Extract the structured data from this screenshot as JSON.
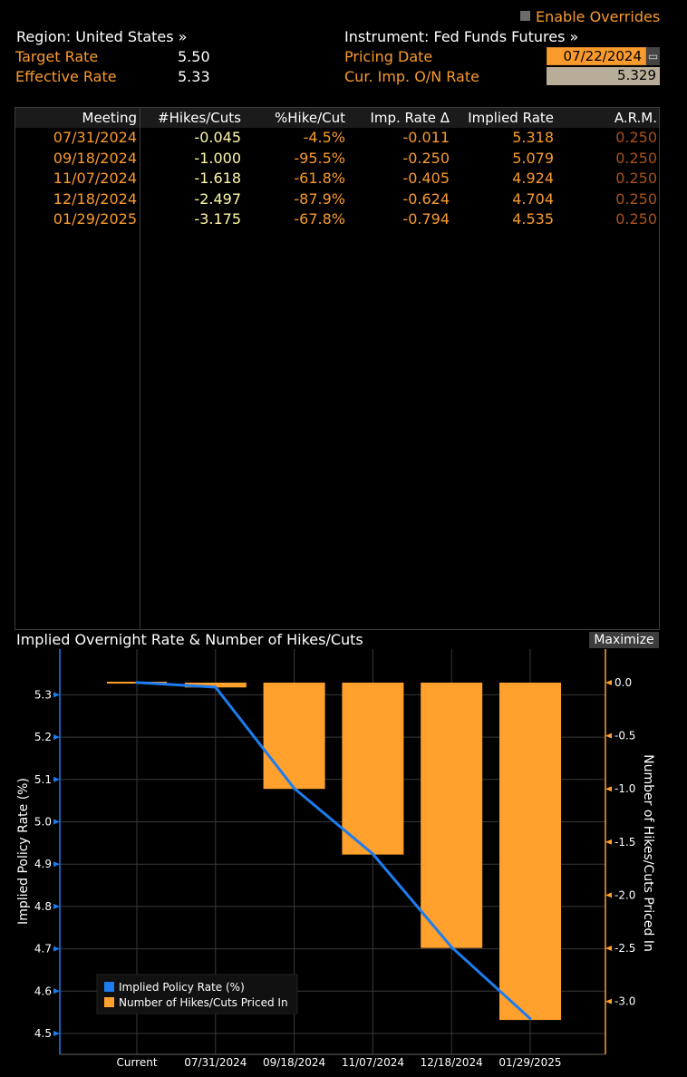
{
  "header": {
    "enable_overrides": "Enable Overrides",
    "region": "Region: United States »",
    "instrument": "Instrument: Fed Funds Futures »",
    "target_rate_label": "Target Rate",
    "target_rate_value": "5.50",
    "effective_rate_label": "Effective Rate",
    "effective_rate_value": "5.33",
    "pricing_date_label": "Pricing Date",
    "pricing_date_value": "07/22/2024",
    "cur_imp_label": "Cur. Imp. O/N Rate",
    "cur_imp_value": "5.329"
  },
  "table": {
    "columns": [
      "Meeting",
      "#Hikes/Cuts",
      "%Hike/Cut",
      "Imp. Rate Δ",
      "Implied Rate",
      "A.R.M."
    ],
    "rows": [
      [
        "07/31/2024",
        "-0.045",
        "-4.5%",
        "-0.011",
        "5.318",
        "0.250"
      ],
      [
        "09/18/2024",
        "-1.000",
        "-95.5%",
        "-0.250",
        "5.079",
        "0.250"
      ],
      [
        "11/07/2024",
        "-1.618",
        "-61.8%",
        "-0.405",
        "4.924",
        "0.250"
      ],
      [
        "12/18/2024",
        "-2.497",
        "-87.9%",
        "-0.624",
        "4.704",
        "0.250"
      ],
      [
        "01/29/2025",
        "-3.175",
        "-67.8%",
        "-0.794",
        "4.535",
        "0.250"
      ]
    ]
  },
  "chart_panel": {
    "title": "Implied Overnight Rate & Number of Hikes/Cuts",
    "maximize": "Maximize"
  },
  "colors": {
    "orange": "#f99a2c",
    "line_blue": "#1e7cf0",
    "bar_orange": "#ffa12c",
    "background": "#000000"
  },
  "chart_data": {
    "type": "bar+line",
    "categories": [
      "Current",
      "07/31/2024",
      "09/18/2024",
      "11/07/2024",
      "12/18/2024",
      "01/29/2025"
    ],
    "series": [
      {
        "name": "Implied Policy Rate (%)",
        "type": "line",
        "axis": "left",
        "values": [
          5.329,
          5.318,
          5.079,
          4.924,
          4.704,
          4.535
        ]
      },
      {
        "name": "Number of Hikes/Cuts Priced In",
        "type": "bar",
        "axis": "right",
        "values": [
          0,
          -0.045,
          -1.0,
          -1.618,
          -2.497,
          -3.175
        ]
      }
    ],
    "ylabel": "Implied Policy Rate (%)",
    "y2label": "Number of Hikes/Cuts Priced In",
    "ylim": [
      4.48,
      5.38
    ],
    "y2lim": [
      -3.335,
      0.15
    ],
    "yticks": [
      "4.5",
      "4.6",
      "4.7",
      "4.8",
      "4.9",
      "5.0",
      "5.1",
      "5.2",
      "5.3"
    ],
    "y2ticks": [
      "-3.0",
      "-2.5",
      "-2.0",
      "-1.5",
      "-1.0",
      "-0.5",
      "0.0"
    ],
    "grid": true,
    "legend_position": "bottom-left"
  }
}
